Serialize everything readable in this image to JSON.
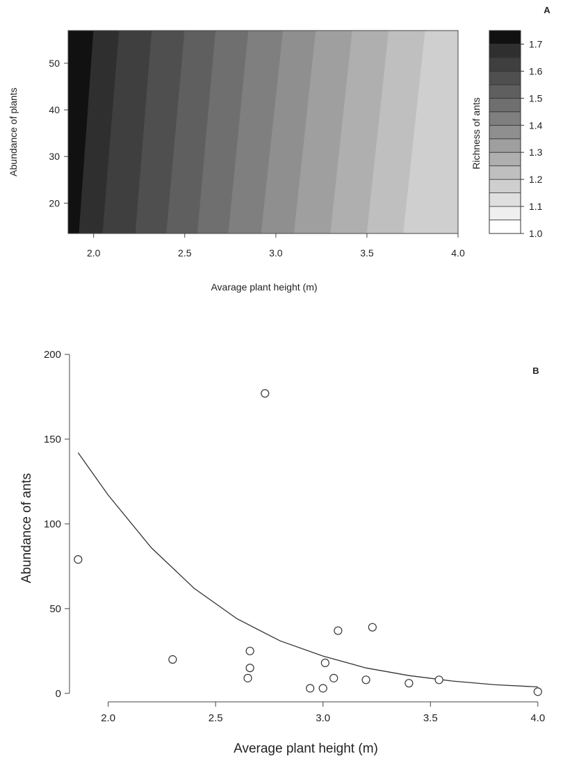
{
  "chart_data": [
    {
      "panel": "A",
      "type": "heatmap",
      "xlabel": "Avarage plant height (m)",
      "ylabel": "Abundance of plants",
      "colorbar_label": "Richness of ants",
      "xlim": [
        1.86,
        4.0
      ],
      "ylim": [
        13.5,
        57
      ],
      "xticks": [
        "2.0",
        "2.5",
        "3.0",
        "3.5",
        "4.0"
      ],
      "xtick_values": [
        2.0,
        2.5,
        3.0,
        3.5,
        4.0
      ],
      "yticks": [
        "20",
        "30",
        "40",
        "50"
      ],
      "ytick_values": [
        20,
        30,
        40,
        50
      ],
      "colorbar_ticks": [
        "1.0",
        "1.1",
        "1.2",
        "1.3",
        "1.4",
        "1.5",
        "1.6",
        "1.7"
      ],
      "colorbar_tick_values": [
        1.0,
        1.1,
        1.2,
        1.3,
        1.4,
        1.5,
        1.6,
        1.7
      ],
      "levels": [
        1.0,
        1.05,
        1.1,
        1.15,
        1.2,
        1.25,
        1.3,
        1.35,
        1.4,
        1.45,
        1.5,
        1.55,
        1.6,
        1.65,
        1.7,
        1.75
      ],
      "band_colors": [
        "#ffffff",
        "#efefef",
        "#dfdfdf",
        "#cfcfcf",
        "#bfbfbf",
        "#afafaf",
        "#9f9f9f",
        "#8f8f8f",
        "#7f7f7f",
        "#6f6f6f",
        "#5f5f5f",
        "#4f4f4f",
        "#3f3f3f",
        "#2f2f2f",
        "#111111"
      ],
      "contour_model": {
        "height_at_top": [
          1.86,
          2.0,
          2.14,
          2.32,
          2.5,
          2.67,
          2.85,
          3.04,
          3.22,
          3.42,
          3.62,
          3.82
        ],
        "height_at_bottom": [
          1.86,
          1.92,
          2.05,
          2.23,
          2.4,
          2.57,
          2.74,
          2.92,
          3.1,
          3.3,
          3.5,
          3.7
        ],
        "note_levels": [
          1.75,
          1.7,
          1.65,
          1.6,
          1.55,
          1.5,
          1.45,
          1.4,
          1.35,
          1.3,
          1.25,
          1.2
        ]
      }
    },
    {
      "panel": "B",
      "type": "scatter",
      "xlabel": "Average plant height (m)",
      "ylabel": "Abundance of ants",
      "xlim": [
        1.82,
        4.02
      ],
      "ylim": [
        -5,
        200
      ],
      "xticks": [
        "2.0",
        "2.5",
        "3.0",
        "3.5",
        "4.0"
      ],
      "xtick_values": [
        2.0,
        2.5,
        3.0,
        3.5,
        4.0
      ],
      "yticks": [
        "0",
        "50",
        "100",
        "150",
        "200"
      ],
      "ytick_values": [
        0,
        50,
        100,
        150,
        200
      ],
      "points": [
        {
          "x": 1.86,
          "y": 79
        },
        {
          "x": 2.3,
          "y": 20
        },
        {
          "x": 2.65,
          "y": 9
        },
        {
          "x": 2.66,
          "y": 15
        },
        {
          "x": 2.66,
          "y": 25
        },
        {
          "x": 2.73,
          "y": 177
        },
        {
          "x": 2.94,
          "y": 3
        },
        {
          "x": 3.0,
          "y": 3
        },
        {
          "x": 3.01,
          "y": 18
        },
        {
          "x": 3.05,
          "y": 9
        },
        {
          "x": 3.07,
          "y": 37
        },
        {
          "x": 3.2,
          "y": 8
        },
        {
          "x": 3.23,
          "y": 39
        },
        {
          "x": 3.4,
          "y": 6
        },
        {
          "x": 3.54,
          "y": 8
        },
        {
          "x": 4.0,
          "y": 1
        }
      ],
      "fit_curve": {
        "x": [
          1.86,
          2.0,
          2.2,
          2.4,
          2.6,
          2.8,
          3.0,
          3.2,
          3.4,
          3.6,
          3.8,
          4.0
        ],
        "y": [
          142,
          117,
          86,
          62,
          44,
          31,
          22,
          15,
          10.5,
          7.3,
          5.1,
          3.8
        ]
      }
    }
  ],
  "panel_labels": {
    "a": "A",
    "b": "B"
  }
}
